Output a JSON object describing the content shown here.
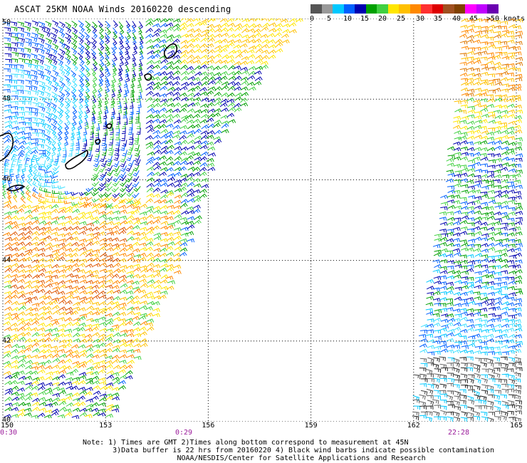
{
  "title": "ASCAT 25KM NOAA Winds 20160220 descending",
  "legend": {
    "colors": [
      "#555555",
      "#999999",
      "#00c8ff",
      "#0060ff",
      "#0000b0",
      "#00a000",
      "#40d040",
      "#ffe600",
      "#ffc000",
      "#ff8800",
      "#ff3030",
      "#dd0000",
      "#a05020",
      "#804000",
      "#ff00ff",
      "#c000ff",
      "#6a00b0"
    ],
    "labels": [
      "0",
      "5",
      "10",
      "15",
      "20",
      "25",
      "30",
      "35",
      "40",
      "45",
      ">50 knots"
    ]
  },
  "lat_labels": [
    "50",
    "48",
    "46",
    "44",
    "42",
    "40"
  ],
  "lon_labels": [
    "150",
    "153",
    "156",
    "159",
    "162",
    "165"
  ],
  "time_labels": [
    "0:30",
    "0:29",
    "22:28"
  ],
  "note": "Note: 1) Times are GMT 2)Times along bottom correspond to measurement at 45N\n       3)Data buffer is 22 hrs from 20160220 4) Black wind barbs indicate possible contamination\n                      NOAA/NESDIS/Center for Satellite Applications and Research",
  "map": {
    "lon_range": [
      150,
      165
    ],
    "lat_range": [
      40,
      50
    ],
    "swaths": [
      {
        "name": "west swath",
        "time": "0:30"
      },
      {
        "name": "east swath",
        "time": "22:28"
      }
    ]
  }
}
